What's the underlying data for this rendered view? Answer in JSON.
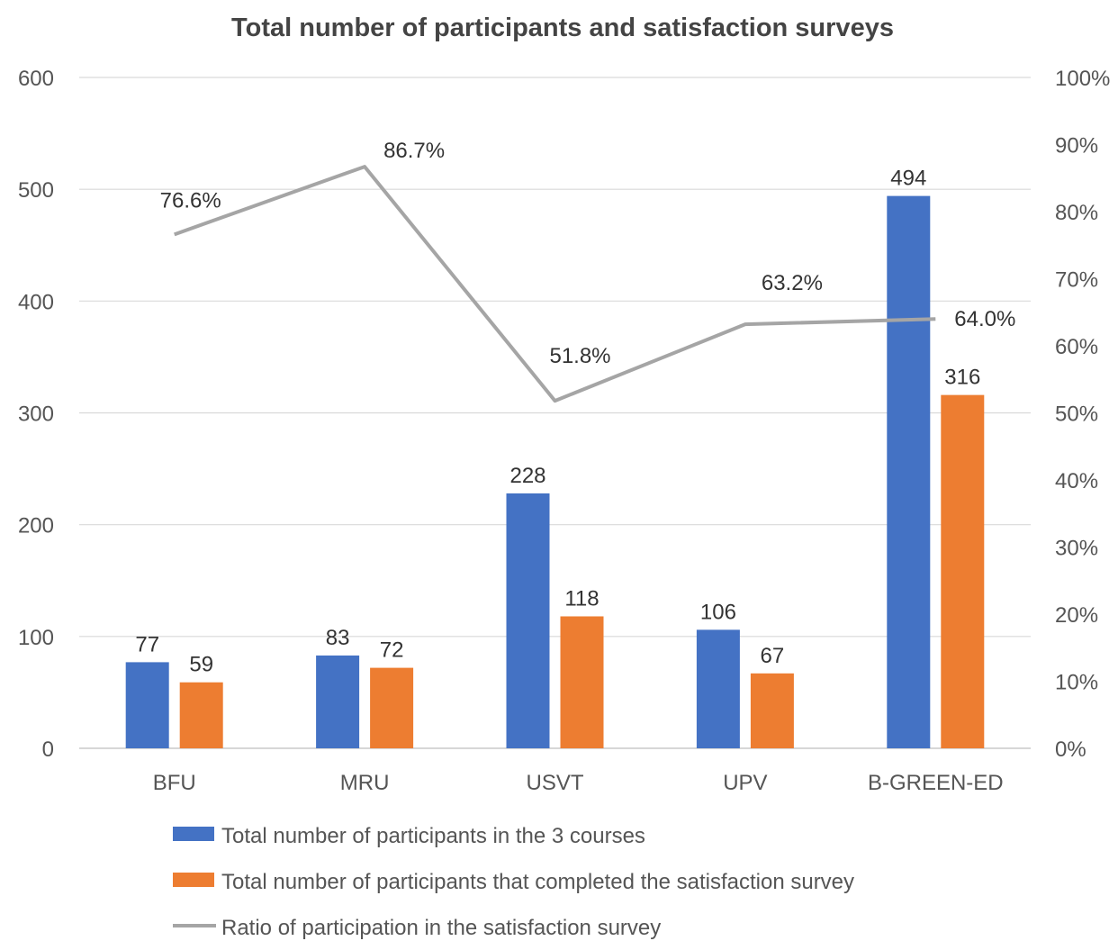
{
  "chart_data": {
    "type": "bar",
    "title": "Total number of participants and satisfaction surveys",
    "categories": [
      "BFU",
      "MRU",
      "USVT",
      "UPV",
      "B-GREEN-ED"
    ],
    "series": [
      {
        "name": "Total number of participants in the 3 courses",
        "type": "bar",
        "axis": "left",
        "color": "#4472C4",
        "values": [
          77,
          83,
          228,
          106,
          494
        ],
        "labels": [
          "77",
          "83",
          "228",
          "106",
          "494"
        ]
      },
      {
        "name": "Total number of participants that completed the satisfaction survey",
        "type": "bar",
        "axis": "left",
        "color": "#ED7D31",
        "values": [
          59,
          72,
          118,
          67,
          316
        ],
        "labels": [
          "59",
          "72",
          "118",
          "67",
          "316"
        ]
      },
      {
        "name": "Ratio of participation in the satisfaction survey",
        "type": "line",
        "axis": "right",
        "color": "#A5A5A5",
        "values": [
          76.6,
          86.7,
          51.8,
          63.2,
          64.0
        ],
        "labels": [
          "76.6%",
          "86.7%",
          "51.8%",
          "63.2%",
          "64.0%"
        ]
      }
    ],
    "y_left": {
      "range": [
        0,
        600
      ],
      "ticks": [
        "0",
        "100",
        "200",
        "300",
        "400",
        "500",
        "600"
      ]
    },
    "y_right": {
      "range": [
        0,
        100
      ],
      "ticks": [
        "0%",
        "10%",
        "20%",
        "30%",
        "40%",
        "50%",
        "60%",
        "70%",
        "80%",
        "90%",
        "100%"
      ]
    },
    "grid": true,
    "legend_position": "bottom"
  }
}
